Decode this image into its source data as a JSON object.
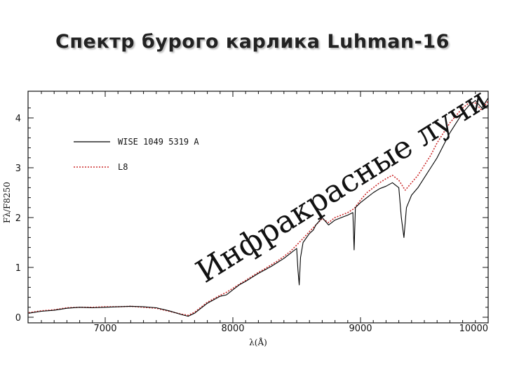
{
  "slide": {
    "title": "Спектр бурого карлика Luhman-16"
  },
  "chart_data": {
    "type": "line",
    "title": "Спектр бурого карлика Luhman-16",
    "xlabel": "λ(Å)",
    "ylabel": "Fλ/F8250",
    "xlim": [
      6400,
      10000
    ],
    "ylim": [
      0,
      4.4
    ],
    "xticks": [
      "7000",
      "8000",
      "9000",
      "10000"
    ],
    "yticks": [
      "0",
      "1",
      "2",
      "3",
      "4"
    ],
    "legend": {
      "placement": "top-left"
    },
    "annotation": "Инфракрасные лучи",
    "series": [
      {
        "name": "WISE 1049  5319 A",
        "color": "#000000",
        "style": "solid",
        "x": [
          6400,
          6500,
          6600,
          6700,
          6800,
          6900,
          7000,
          7100,
          7200,
          7300,
          7400,
          7500,
          7600,
          7650,
          7700,
          7750,
          7800,
          7850,
          7900,
          7950,
          8000,
          8050,
          8100,
          8150,
          8200,
          8250,
          8300,
          8350,
          8400,
          8450,
          8500,
          8510,
          8520,
          8530,
          8550,
          8600,
          8630,
          8650,
          8700,
          8750,
          8800,
          8850,
          8900,
          8940,
          8950,
          8960,
          9000,
          9050,
          9100,
          9150,
          9200,
          9250,
          9300,
          9320,
          9340,
          9360,
          9400,
          9450,
          9500,
          9550,
          9600,
          9650,
          9700,
          9750,
          9800,
          9850,
          9900,
          9950,
          10000
        ],
        "y": [
          0.08,
          0.12,
          0.14,
          0.18,
          0.2,
          0.19,
          0.2,
          0.21,
          0.22,
          0.21,
          0.19,
          0.13,
          0.05,
          0.02,
          0.08,
          0.18,
          0.28,
          0.35,
          0.42,
          0.45,
          0.55,
          0.65,
          0.72,
          0.8,
          0.88,
          0.95,
          1.02,
          1.1,
          1.18,
          1.28,
          1.38,
          0.95,
          0.65,
          1.2,
          1.5,
          1.68,
          1.75,
          1.85,
          2.0,
          1.85,
          1.95,
          2.0,
          2.05,
          2.1,
          1.35,
          2.2,
          2.3,
          2.4,
          2.5,
          2.58,
          2.63,
          2.7,
          2.6,
          2.0,
          1.6,
          2.2,
          2.45,
          2.6,
          2.8,
          3.0,
          3.2,
          3.45,
          3.7,
          3.9,
          4.1,
          4.25,
          4.35,
          4.2,
          4.4
        ]
      },
      {
        "name": "L8",
        "color": "#cc2a2a",
        "style": "dotted",
        "x": [
          6400,
          6500,
          6600,
          6700,
          6800,
          6900,
          7000,
          7100,
          7200,
          7300,
          7400,
          7500,
          7600,
          7650,
          7700,
          7750,
          7800,
          7850,
          7900,
          7950,
          8000,
          8050,
          8100,
          8150,
          8200,
          8250,
          8300,
          8350,
          8400,
          8450,
          8500,
          8550,
          8600,
          8650,
          8700,
          8750,
          8800,
          8850,
          8900,
          8950,
          9000,
          9050,
          9100,
          9150,
          9200,
          9250,
          9300,
          9350,
          9400,
          9450,
          9500,
          9550,
          9600,
          9650,
          9700,
          9750,
          9800,
          9850,
          9900,
          9950,
          10000
        ],
        "y": [
          0.09,
          0.13,
          0.15,
          0.19,
          0.2,
          0.2,
          0.21,
          0.21,
          0.22,
          0.2,
          0.18,
          0.12,
          0.06,
          0.04,
          0.1,
          0.2,
          0.3,
          0.37,
          0.44,
          0.5,
          0.58,
          0.66,
          0.74,
          0.82,
          0.9,
          0.97,
          1.05,
          1.13,
          1.22,
          1.32,
          1.45,
          1.58,
          1.72,
          1.85,
          1.98,
          1.9,
          2.0,
          2.05,
          2.1,
          2.18,
          2.35,
          2.5,
          2.6,
          2.7,
          2.78,
          2.85,
          2.75,
          2.55,
          2.7,
          2.85,
          3.05,
          3.25,
          3.5,
          3.7,
          3.9,
          4.05,
          4.2,
          4.3,
          4.3,
          4.15,
          4.35
        ]
      }
    ]
  }
}
